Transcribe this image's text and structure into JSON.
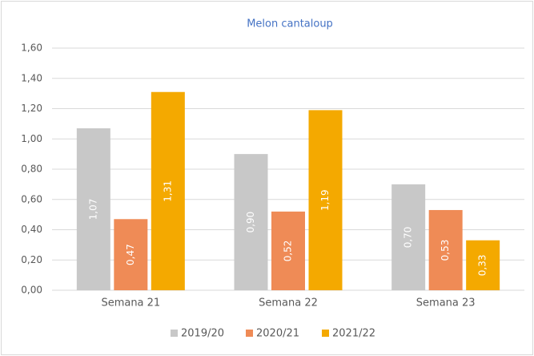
{
  "chart_data": {
    "type": "bar",
    "title": "Melon cantaloup",
    "categories": [
      "Semana 21",
      "Semana 22",
      "Semana 23"
    ],
    "series": [
      {
        "name": "2019/20",
        "color": "#c8c8c8",
        "values": [
          1.07,
          0.9,
          0.7
        ],
        "value_labels": [
          "1,07",
          "0,90",
          "0,70"
        ]
      },
      {
        "name": "2020/21",
        "color": "#ef8b56",
        "values": [
          0.47,
          0.52,
          0.53
        ],
        "value_labels": [
          "0,47",
          "0,52",
          "0,53"
        ]
      },
      {
        "name": "2021/22",
        "color": "#f4a900",
        "values": [
          1.31,
          1.19,
          0.33
        ],
        "value_labels": [
          "1,31",
          "1,19",
          "0,33"
        ]
      }
    ],
    "ylim": [
      0,
      1.6
    ],
    "yticks": [
      {
        "value": 0,
        "label": "0,00"
      },
      {
        "value": 0.2,
        "label": "0,20"
      },
      {
        "value": 0.4,
        "label": "0,40"
      },
      {
        "value": 0.6,
        "label": "0,60"
      },
      {
        "value": 0.8,
        "label": "0,80"
      },
      {
        "value": 1.0,
        "label": "1,00"
      },
      {
        "value": 1.2,
        "label": "1,20"
      },
      {
        "value": 1.4,
        "label": "1,40"
      },
      {
        "value": 1.6,
        "label": "1,60"
      }
    ],
    "grid": true,
    "legend": "bottom"
  }
}
